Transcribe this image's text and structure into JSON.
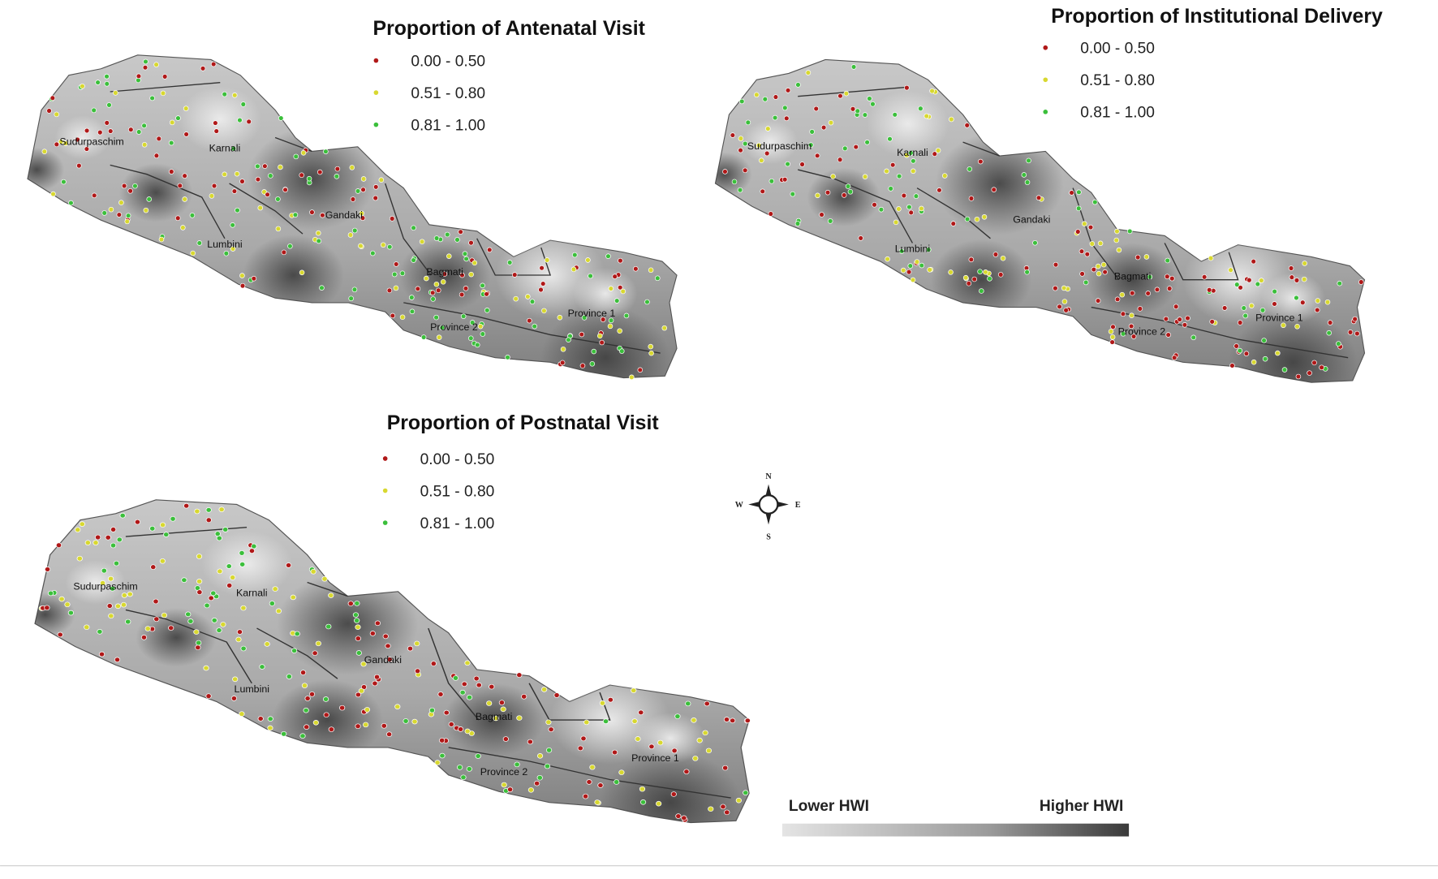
{
  "panels": [
    {
      "title": "Proportion of Antenatal Visit",
      "legend": [
        "0.00 - 0.50",
        "0.51 - 0.80",
        "0.81 - 1.00"
      ],
      "regions": [
        "Sudurpaschim",
        "Karnali",
        "Gandaki",
        "Lumbini",
        "Bagmati",
        "Province 1",
        "Province 2"
      ]
    },
    {
      "title": "Proportion of Institutional Delivery",
      "legend": [
        "0.00 - 0.50",
        "0.51 - 0.80",
        "0.81 - 1.00"
      ],
      "regions": [
        "Sudurpaschim",
        "Karnali",
        "Gandaki",
        "Lumbini",
        "Bagmati",
        "Province 1",
        "Province 2"
      ]
    },
    {
      "title": "Proportion of Postnatal Visit",
      "legend": [
        "0.00 - 0.50",
        "0.51 - 0.80",
        "0.81 - 1.00"
      ],
      "regions": [
        "Sudurpaschim",
        "Karnali",
        "Gandaki",
        "Lumbini",
        "Bagmati",
        "Province 1",
        "Province 2"
      ]
    }
  ],
  "compass": {
    "north": "N",
    "south": "S",
    "east": "E",
    "west": "W"
  },
  "scale": {
    "low": "Lower HWI",
    "high": "Higher HWI"
  }
}
